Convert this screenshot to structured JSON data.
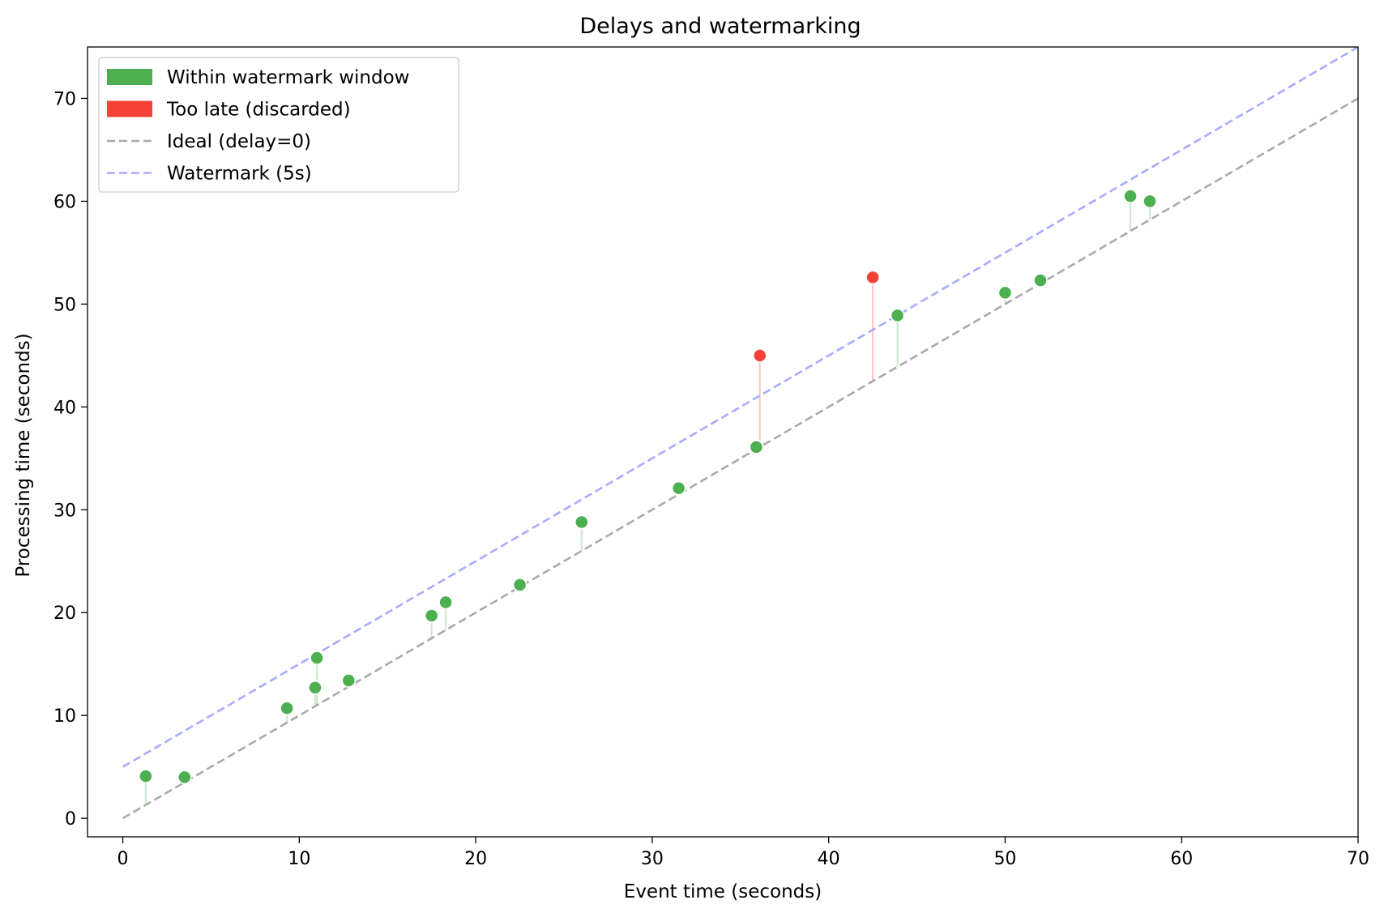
{
  "chart_data": {
    "type": "scatter",
    "title": "Delays and watermarking",
    "xlabel": "Event time (seconds)",
    "ylabel": "Processing time (seconds)",
    "xlim": [
      -2,
      70
    ],
    "ylim": [
      -1.8,
      75
    ],
    "xticks": [
      0,
      10,
      20,
      30,
      40,
      50,
      60,
      70
    ],
    "yticks": [
      0,
      10,
      20,
      30,
      40,
      50,
      60,
      70
    ],
    "grid": false,
    "legend_position": "upper-left",
    "watermark_delay": 5,
    "legend": [
      {
        "label": "Within watermark window",
        "kind": "patch",
        "color": "#4caf50"
      },
      {
        "label": "Too late (discarded)",
        "kind": "patch",
        "color": "#f44336"
      },
      {
        "label": "Ideal (delay=0)",
        "kind": "dashed",
        "color": "#aaaaaa"
      },
      {
        "label": "Watermark (5s)",
        "kind": "dashed",
        "color": "#aaaaff"
      }
    ],
    "lines": [
      {
        "name": "Ideal (delay=0)",
        "x": [
          0,
          70
        ],
        "y": [
          0,
          70
        ],
        "color": "#aaaaaa"
      },
      {
        "name": "Watermark (5s)",
        "x": [
          0,
          70
        ],
        "y": [
          5,
          75
        ],
        "color": "#aaaaff"
      }
    ],
    "series": [
      {
        "name": "Within watermark window",
        "color": "#4caf50",
        "points": [
          {
            "x": 1.3,
            "y": 4.1
          },
          {
            "x": 3.5,
            "y": 4.0
          },
          {
            "x": 9.3,
            "y": 10.7
          },
          {
            "x": 10.9,
            "y": 12.7
          },
          {
            "x": 11.0,
            "y": 15.6
          },
          {
            "x": 12.8,
            "y": 13.4
          },
          {
            "x": 17.5,
            "y": 19.7
          },
          {
            "x": 18.3,
            "y": 21.0
          },
          {
            "x": 22.5,
            "y": 22.7
          },
          {
            "x": 26.0,
            "y": 28.8
          },
          {
            "x": 31.5,
            "y": 32.1
          },
          {
            "x": 35.9,
            "y": 36.1
          },
          {
            "x": 43.9,
            "y": 48.9
          },
          {
            "x": 50.0,
            "y": 51.1
          },
          {
            "x": 52.0,
            "y": 52.3
          },
          {
            "x": 57.1,
            "y": 60.5
          },
          {
            "x": 58.2,
            "y": 60.0
          }
        ]
      },
      {
        "name": "Too late (discarded)",
        "color": "#f44336",
        "points": [
          {
            "x": 36.1,
            "y": 45.0
          },
          {
            "x": 42.5,
            "y": 52.6
          }
        ]
      }
    ]
  }
}
